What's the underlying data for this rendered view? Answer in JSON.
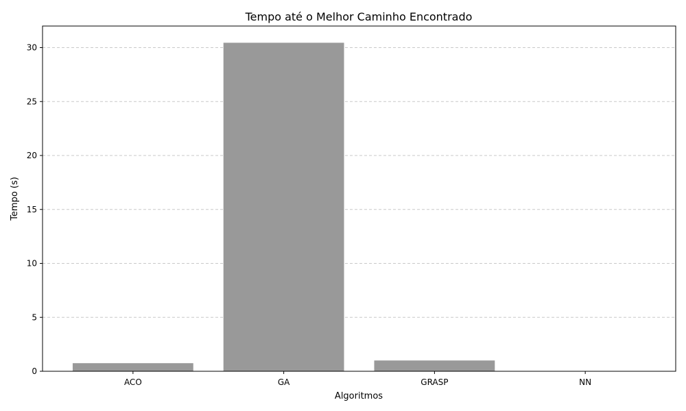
{
  "chart_data": {
    "type": "bar",
    "title": "Tempo até o Melhor Caminho Encontrado",
    "xlabel": "Algoritmos",
    "ylabel": "Tempo (s)",
    "categories": [
      "ACO",
      "GA",
      "GRASP",
      "NN"
    ],
    "values": [
      0.75,
      30.45,
      1.0,
      0.0
    ],
    "ylim": [
      0,
      32
    ],
    "yticks": [
      0,
      5,
      10,
      15,
      20,
      25,
      30
    ],
    "grid": "y-dashed",
    "bar_color": "#999999",
    "grid_color": "#c8c8c8"
  }
}
